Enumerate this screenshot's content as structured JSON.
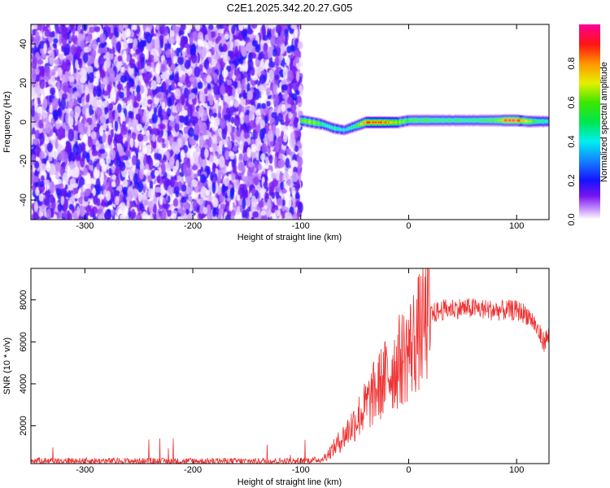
{
  "title": "C2E1.2025.342.20.27.G05",
  "chart_data": [
    {
      "type": "heatmap",
      "xlabel": "Height of straight line (km)",
      "ylabel": "Frequency (Hz)",
      "xlim": [
        -350,
        130
      ],
      "ylim": [
        -50,
        50
      ],
      "xticks": [
        -300,
        -200,
        -100,
        0,
        100
      ],
      "yticks": [
        -40,
        -20,
        0,
        20,
        40
      ],
      "colorbar": {
        "label": "Normalized spectral amplitude",
        "range": [
          0,
          1
        ],
        "ticks": [
          0.0,
          0.2,
          0.4,
          0.6,
          0.8
        ]
      },
      "noise_region_x": [
        -350,
        -100
      ],
      "signal_ridge": {
        "x": [
          -100,
          -90,
          -80,
          -70,
          -60,
          -50,
          -40,
          -30,
          -20,
          -10,
          0,
          20,
          40,
          60,
          80,
          90,
          100,
          110,
          120,
          130
        ],
        "freq": [
          1,
          0,
          -1,
          -3,
          -4,
          -2,
          0,
          0,
          0,
          0,
          1,
          1,
          1,
          1,
          1,
          1,
          1,
          0.5,
          0.5,
          0.5
        ],
        "amplitude": [
          0.6,
          0.7,
          0.5,
          0.45,
          0.4,
          0.5,
          0.85,
          0.9,
          0.85,
          0.7,
          0.6,
          0.55,
          0.5,
          0.5,
          0.6,
          0.9,
          0.95,
          0.7,
          0.5,
          0.45
        ]
      }
    },
    {
      "type": "line",
      "xlabel": "Height of straight line (km)",
      "ylabel": "SNR (10 * v/v)",
      "xlim": [
        -350,
        130
      ],
      "ylim": [
        200,
        9500
      ],
      "xticks": [
        -300,
        -200,
        -100,
        0,
        100
      ],
      "yticks": [
        2000,
        4000,
        6000,
        8000
      ],
      "color": "#ee3333",
      "series": {
        "x": [
          -350,
          -300,
          -250,
          -200,
          -150,
          -100,
          -80,
          -70,
          -60,
          -50,
          -40,
          -30,
          -20,
          -10,
          0,
          10,
          20,
          30,
          40,
          60,
          80,
          100,
          110,
          115,
          120,
          125,
          130
        ],
        "y": [
          350,
          330,
          320,
          320,
          320,
          330,
          400,
          900,
          1500,
          2200,
          2900,
          3700,
          4400,
          5000,
          5600,
          6500,
          7300,
          7500,
          7600,
          7600,
          7500,
          7500,
          7300,
          7000,
          6500,
          6000,
          6300
        ]
      }
    }
  ]
}
